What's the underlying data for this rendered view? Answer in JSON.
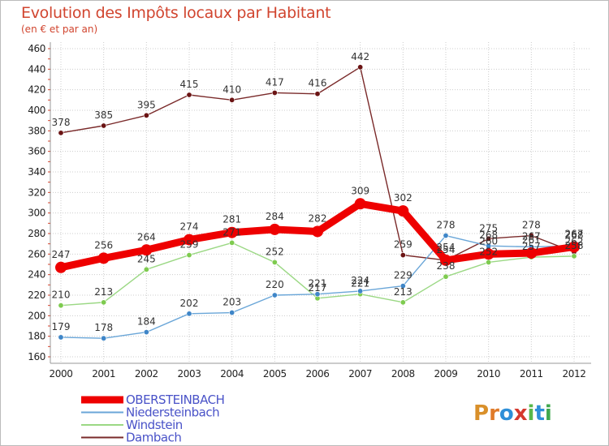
{
  "colors": {
    "title": "#d1452f",
    "subtitle": "#d1452f",
    "background": "#ffffff",
    "grid": "#cccccc",
    "frame": "#bbbbbb",
    "legend_text": "#4a53c8"
  },
  "logo": {
    "text": "Proxiti",
    "letter_colors": [
      "#d9902a",
      "#e07b2a",
      "#2e8fd8",
      "#d5392e",
      "#58b84a",
      "#2e8fd8",
      "#3fa84e"
    ]
  },
  "chart_data": {
    "type": "line",
    "title": "Evolution des Impôts locaux par Habitant",
    "subtitle": "(en € et par an)",
    "xlabel": "",
    "ylabel": "",
    "x": [
      "2000",
      "2001",
      "2002",
      "2003",
      "2004",
      "2005",
      "2006",
      "2007",
      "2008",
      "2009",
      "2010",
      "2011",
      "2012"
    ],
    "yticks": [
      160,
      180,
      200,
      220,
      240,
      260,
      280,
      300,
      320,
      340,
      360,
      380,
      400,
      420,
      440,
      460
    ],
    "ylim": [
      160,
      460
    ],
    "grid": true,
    "legend_position": "bottom-left",
    "series": [
      {
        "name": "Dambach",
        "color": "#7a2a2a",
        "marker": "#6b1414",
        "weight": "thin",
        "values": [
          378,
          385,
          395,
          415,
          410,
          417,
          416,
          442,
          259,
          254,
          275,
          278,
          262
        ],
        "labels": [
          "378",
          "385",
          "395",
          "415",
          "410",
          "417",
          "416",
          "442",
          "259",
          "254",
          "275",
          "278",
          "262"
        ]
      },
      {
        "name": "Windstein",
        "color": "#9bd884",
        "marker": "#7ecb4f",
        "weight": "thin",
        "values": [
          210,
          213,
          245,
          259,
          271,
          252,
          217,
          221,
          213,
          238,
          252,
          257,
          258
        ],
        "labels": [
          "210",
          "213",
          "245",
          "259",
          "271",
          "252",
          "217",
          "221",
          "213",
          "238",
          "252",
          "257",
          "258"
        ]
      },
      {
        "name": "Niedersteinbach",
        "color": "#6aa6d8",
        "marker": "#3f86c8",
        "weight": "thin",
        "values": [
          179,
          178,
          184,
          202,
          203,
          220,
          221,
          224,
          229,
          278,
          268,
          267,
          268
        ],
        "labels": [
          "179",
          "178",
          "184",
          "202",
          "203",
          "220",
          "221",
          "224",
          "229",
          "278",
          "268",
          "267",
          "268"
        ]
      },
      {
        "name": "OBERSTEINBACH",
        "color": "#ee0000",
        "marker": "#ee0000",
        "weight": "thick",
        "values": [
          247,
          256,
          264,
          274,
          281,
          284,
          282,
          309,
          302,
          254,
          260,
          261,
          267
        ],
        "labels": [
          "247",
          "256",
          "264",
          "274",
          "281",
          "284",
          "282",
          "309",
          "302",
          "254",
          "260",
          "261",
          "267"
        ]
      }
    ],
    "legend_order": [
      "OBERSTEINBACH",
      "Niedersteinbach",
      "Windstein",
      "Dambach"
    ]
  }
}
